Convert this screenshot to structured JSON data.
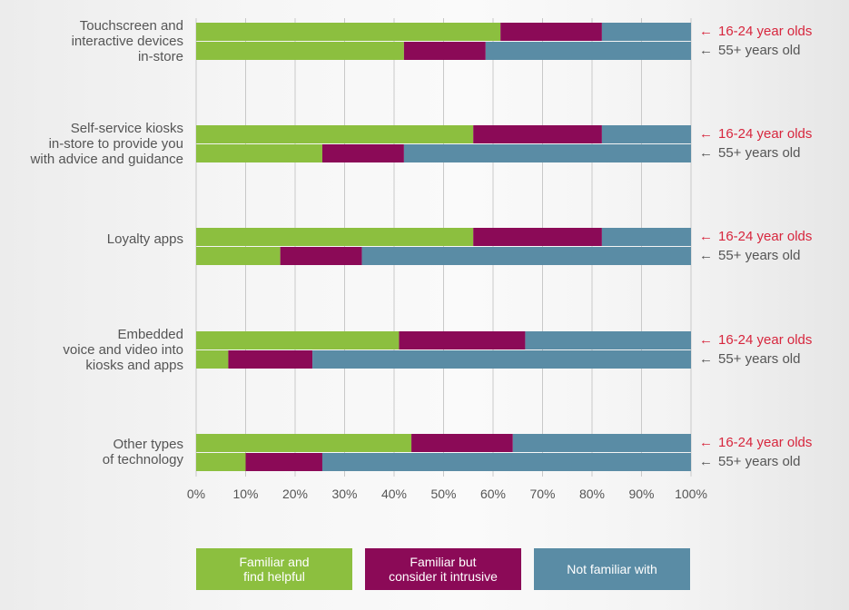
{
  "chart_data": {
    "type": "bar",
    "orientation": "horizontal",
    "stacked": true,
    "categories": [
      "Touchscreen and interactive devices in-store",
      "Self-service kiosks in-store to provide you with advice and guidance",
      "Loyalty apps",
      "Embedded voice and video into kiosks and apps",
      "Other types of technology"
    ],
    "category_lines": [
      [
        "Touchscreen and",
        "interactive devices",
        "in-store"
      ],
      [
        "Self-service kiosks",
        "in-store to provide you",
        "with advice and guidance"
      ],
      [
        "Loyalty apps"
      ],
      [
        "Embedded",
        "voice and video into",
        "kiosks and apps"
      ],
      [
        "Other types",
        "of technology"
      ]
    ],
    "groups": [
      "16-24 year olds",
      "55+ years old"
    ],
    "series": [
      {
        "name": "Familiar and find helpful",
        "legend_lines": [
          "Familiar and",
          "find helpful"
        ],
        "color": "#8cbf3f",
        "values": [
          [
            61.5,
            42
          ],
          [
            56,
            25.5
          ],
          [
            56,
            17
          ],
          [
            41,
            6.5
          ],
          [
            43.5,
            10
          ]
        ]
      },
      {
        "name": "Familiar but consider it intrusive",
        "legend_lines": [
          "Familiar but",
          "consider it intrusive"
        ],
        "color": "#8b0a57",
        "values": [
          [
            20.5,
            16.5
          ],
          [
            26,
            16.5
          ],
          [
            26,
            16.5
          ],
          [
            25.5,
            17
          ],
          [
            20.5,
            15.5
          ]
        ]
      },
      {
        "name": "Not familiar with",
        "legend_lines": [
          "Not familiar with"
        ],
        "color": "#5a8ca5",
        "values": [
          [
            18,
            41.5
          ],
          [
            18,
            58
          ],
          [
            18,
            66.5
          ],
          [
            33.5,
            76.5
          ],
          [
            36,
            74.5
          ]
        ]
      }
    ],
    "xlim": [
      0,
      100
    ],
    "ticks": [
      "0%",
      "10%",
      "20%",
      "30%",
      "40%",
      "50%",
      "60%",
      "70%",
      "80%",
      "90%",
      "100%"
    ],
    "grid": true,
    "legend_position": "bottom",
    "group_label_colors": {
      "16-24 year olds": "#d7263d",
      "55+ years old": "#555555"
    }
  }
}
